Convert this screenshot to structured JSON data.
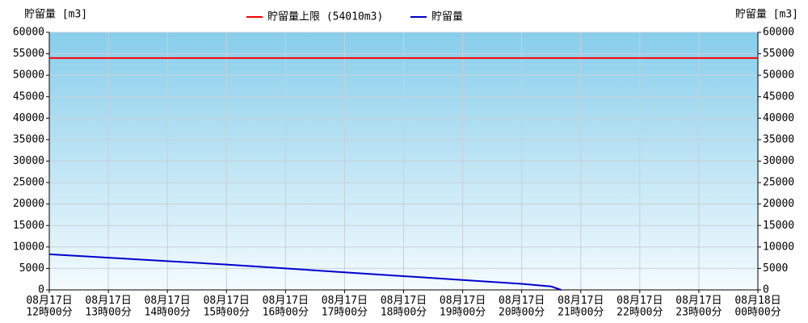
{
  "chart_data": {
    "type": "line",
    "y_title": "貯留量 [m3]",
    "y2_title": "貯留量 [m3]",
    "ylim": [
      0,
      60000
    ],
    "yticks": [
      0,
      5000,
      10000,
      15000,
      20000,
      25000,
      30000,
      35000,
      40000,
      45000,
      50000,
      55000,
      60000
    ],
    "y2lim": [
      0,
      60000
    ],
    "y2ticks": [
      0,
      5000,
      10000,
      15000,
      20000,
      25000,
      30000,
      35000,
      40000,
      45000,
      50000,
      55000,
      60000
    ],
    "xlim": [
      "08月17日\n12時00分",
      "08月18日\n00時00分"
    ],
    "xticks": [
      "08月17日\n12時00分",
      "08月17日\n13時00分",
      "08月17日\n14時00分",
      "08月17日\n15時00分",
      "08月17日\n16時00分",
      "08月17日\n17時00分",
      "08月17日\n18時00分",
      "08月17日\n19時00分",
      "08月17日\n20時00分",
      "08月17日\n21時00分",
      "08月17日\n22時00分",
      "08月17日\n23時00分",
      "08月18日\n00時00分"
    ],
    "grid": true,
    "reference_line": {
      "name": "貯留量上限 (54010m3)",
      "color": "#ff0000",
      "value": 54010
    },
    "series": [
      {
        "name": "貯留量",
        "color": "#0000cc",
        "x": [
          "08月17日 12時00分",
          "08月17日 13時00分",
          "08月17日 14時00分",
          "08月17日 15時00分",
          "08月17日 16時00分",
          "08月17日 17時00分",
          "08月17日 18時00分",
          "08月17日 19時00分",
          "08月17日 20時00分",
          "08月17日 20時30分",
          "08月17日 20時40分"
        ],
        "values": [
          8300,
          7500,
          6700,
          5900,
          5000,
          4100,
          3200,
          2300,
          1400,
          800,
          0
        ]
      }
    ]
  }
}
